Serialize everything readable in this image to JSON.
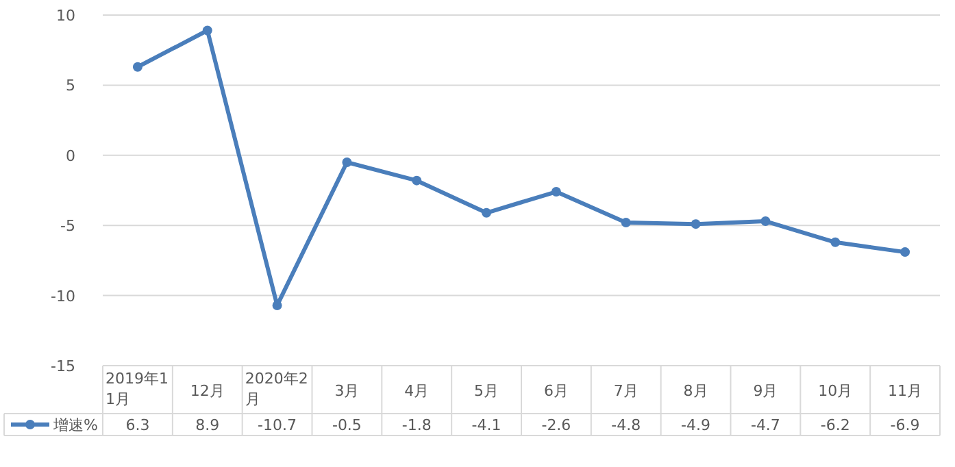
{
  "chart_data": {
    "type": "line",
    "categories": [
      "2019年11月",
      "12月",
      "2020年2月",
      "3月",
      "4月",
      "5月",
      "6月",
      "7月",
      "8月",
      "9月",
      "10月",
      "11月"
    ],
    "series": [
      {
        "name": "增速%",
        "color": "#4a7ebb",
        "values": [
          6.3,
          8.9,
          -10.7,
          -0.5,
          -1.8,
          -4.1,
          -2.6,
          -4.8,
          -4.9,
          -4.7,
          -6.2,
          -6.9
        ]
      }
    ],
    "ylim": [
      -15,
      10
    ],
    "yticks": [
      -15,
      -10,
      -5,
      0,
      5,
      10
    ],
    "grid": "y",
    "marker": "circle",
    "line_style": "solid",
    "data_labels": true,
    "legend": "bottom left"
  }
}
